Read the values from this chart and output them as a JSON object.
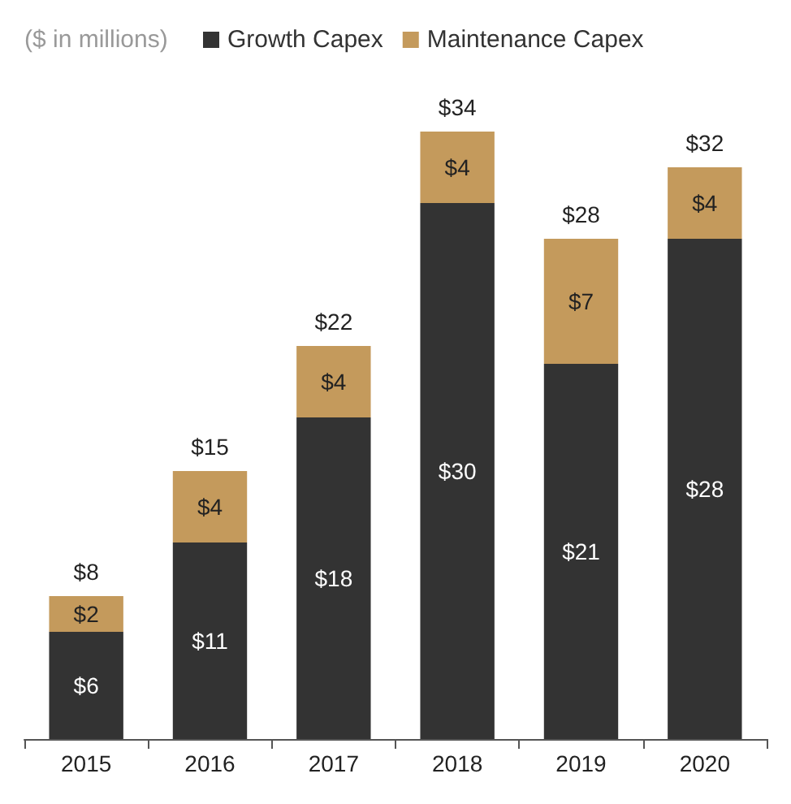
{
  "chart_data": {
    "type": "bar",
    "subtitle": "($ in millions)",
    "stacked": true,
    "legend": "top",
    "grid": false,
    "categories": [
      "2015",
      "2016",
      "2017",
      "2018",
      "2019",
      "2020"
    ],
    "series": [
      {
        "name": "Growth Capex",
        "color": "#333333",
        "values": [
          6,
          11,
          18,
          30,
          21,
          28
        ],
        "value_labels": [
          "$6",
          "$11",
          "$18",
          "$30",
          "$21",
          "$28"
        ]
      },
      {
        "name": "Maintenance Capex",
        "color": "#c49a5c",
        "values": [
          2,
          4,
          4,
          4,
          7,
          4
        ],
        "value_labels": [
          "$2",
          "$4",
          "$4",
          "$4",
          "$7",
          "$4"
        ]
      }
    ],
    "totals": [
      "$8",
      "$15",
      "$22",
      "$34",
      "$28",
      "$32"
    ]
  }
}
